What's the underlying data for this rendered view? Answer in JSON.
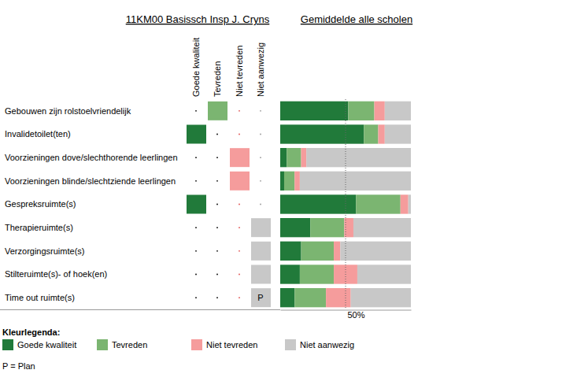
{
  "chart_data": {
    "type": "bar",
    "title": "Gemiddelde alle scholen",
    "orientation": "horizontal",
    "stacked": true,
    "grid": true,
    "tick_labels": "x",
    "categories": [
      "Gebouwen zijn rolstoelvriendelijk",
      "Invalidetoilet(ten)",
      "Voorzieningen dove/slechthorende leerlingen",
      "Voorzieningen blinde/slechtziende leerlingen",
      "Gespreksruimte(s)",
      "Therapieruimte(s)",
      "Verzorgingsruimte(s)",
      "Stilteruimte(s)- of hoek(en)",
      "Time out ruimte(s)"
    ],
    "series": [
      {
        "name": "Goede kwaliteit",
        "color": "#217a3a",
        "values": [
          52,
          64,
          5,
          3,
          58,
          23,
          16,
          15,
          11
        ]
      },
      {
        "name": "Tevreden",
        "color": "#7bb571",
        "values": [
          20,
          11,
          11,
          8,
          34,
          26,
          25,
          26,
          24
        ]
      },
      {
        "name": "Niet tevreden",
        "color": "#f59c9c",
        "values": [
          8,
          5,
          4,
          4,
          6,
          7,
          5,
          18,
          19
        ]
      },
      {
        "name": "Niet aanwezig",
        "color": "#c8c8c8",
        "values": [
          20,
          20,
          80,
          85,
          2,
          44,
          54,
          41,
          46
        ]
      }
    ],
    "xlim": [
      0,
      100
    ],
    "xticks": [
      {
        "value": 50,
        "label": "50%"
      }
    ]
  },
  "table": {
    "title": "11KM00 Basissch Insp J. Cryns",
    "columns": [
      "Goede kwaliteit",
      "Tevreden",
      "Niet tevreden",
      "Niet aanwezig"
    ],
    "rows": [
      {
        "rating": "Tevreden"
      },
      {
        "rating": "Goede kwaliteit"
      },
      {
        "rating": "Niet tevreden"
      },
      {
        "rating": "Niet tevreden"
      },
      {
        "rating": "Goede kwaliteit"
      },
      {
        "rating": "Niet aanwezig"
      },
      {
        "rating": "Niet aanwezig"
      },
      {
        "rating": "Niet aanwezig"
      },
      {
        "rating": "Niet aanwezig",
        "note": "P"
      }
    ]
  },
  "key": {
    "title": "Kleurlegenda:",
    "note": "P = Plan"
  }
}
